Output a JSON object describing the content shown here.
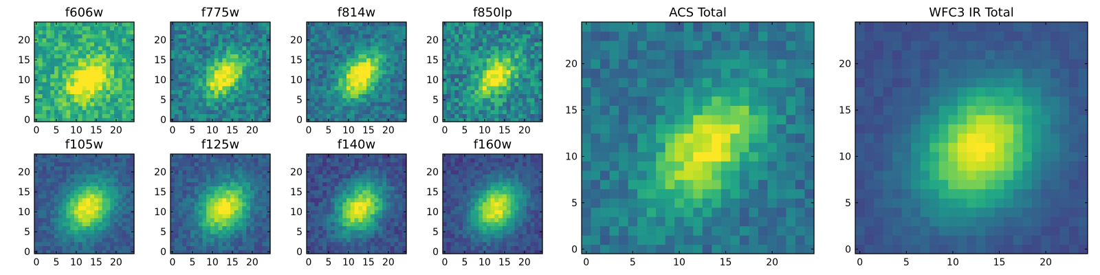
{
  "chart_data": [
    {
      "type": "heatmap",
      "title": "f606w",
      "xticks": [
        "0",
        "5",
        "10",
        "15",
        "20"
      ],
      "yticks": [
        "0",
        "5",
        "10",
        "15",
        "20"
      ],
      "xlim": [
        -0.5,
        24.5
      ],
      "ylim": [
        -0.5,
        24.5
      ],
      "colormap": "viridis",
      "center": [
        13,
        10
      ],
      "sigma": [
        4.2,
        3.0
      ],
      "angle": 45,
      "peak": 0.55,
      "base": 0.62,
      "noise": 0.32,
      "seed": 11
    },
    {
      "type": "heatmap",
      "title": "f775w",
      "xticks": [
        "0",
        "5",
        "10",
        "15",
        "20"
      ],
      "yticks": [
        "0",
        "5",
        "10",
        "15",
        "20"
      ],
      "xlim": [
        -0.5,
        24.5
      ],
      "ylim": [
        -0.5,
        24.5
      ],
      "colormap": "viridis",
      "center": [
        13,
        11
      ],
      "sigma": [
        4.2,
        2.6
      ],
      "angle": 50,
      "peak": 0.65,
      "base": 0.42,
      "noise": 0.3,
      "seed": 23
    },
    {
      "type": "heatmap",
      "title": "f814w",
      "xticks": [
        "0",
        "5",
        "10",
        "15",
        "20"
      ],
      "yticks": [
        "0",
        "5",
        "10",
        "15",
        "20"
      ],
      "xlim": [
        -0.5,
        24.5
      ],
      "ylim": [
        -0.5,
        24.5
      ],
      "colormap": "viridis",
      "center": [
        13,
        11
      ],
      "sigma": [
        4.5,
        2.8
      ],
      "angle": 50,
      "peak": 0.72,
      "base": 0.38,
      "noise": 0.26,
      "seed": 37
    },
    {
      "type": "heatmap",
      "title": "f850lp",
      "xticks": [
        "0",
        "5",
        "10",
        "15",
        "20"
      ],
      "yticks": [
        "0",
        "5",
        "10",
        "15",
        "20"
      ],
      "xlim": [
        -0.5,
        24.5
      ],
      "ylim": [
        -0.5,
        24.5
      ],
      "colormap": "viridis",
      "center": [
        13,
        11
      ],
      "sigma": [
        4.2,
        2.6
      ],
      "angle": 50,
      "peak": 0.62,
      "base": 0.45,
      "noise": 0.36,
      "seed": 41
    },
    {
      "type": "heatmap",
      "title": "f105w",
      "xticks": [
        "0",
        "5",
        "10",
        "15",
        "20"
      ],
      "yticks": [
        "0",
        "5",
        "10",
        "15",
        "20"
      ],
      "xlim": [
        -0.5,
        24.5
      ],
      "ylim": [
        -0.5,
        24.5
      ],
      "colormap": "viridis",
      "center": [
        13,
        11
      ],
      "sigma": [
        5.0,
        3.8
      ],
      "angle": 50,
      "peak": 0.72,
      "base": 0.28,
      "noise": 0.16,
      "seed": 53
    },
    {
      "type": "heatmap",
      "title": "f125w",
      "xticks": [
        "0",
        "5",
        "10",
        "15",
        "20"
      ],
      "yticks": [
        "0",
        "5",
        "10",
        "15",
        "20"
      ],
      "xlim": [
        -0.5,
        24.5
      ],
      "ylim": [
        -0.5,
        24.5
      ],
      "colormap": "viridis",
      "center": [
        13,
        11
      ],
      "sigma": [
        5.0,
        3.8
      ],
      "angle": 50,
      "peak": 0.72,
      "base": 0.28,
      "noise": 0.18,
      "seed": 67
    },
    {
      "type": "heatmap",
      "title": "f140w",
      "xticks": [
        "0",
        "5",
        "10",
        "15",
        "20"
      ],
      "yticks": [
        "0",
        "5",
        "10",
        "15",
        "20"
      ],
      "xlim": [
        -0.5,
        24.5
      ],
      "ylim": [
        -0.5,
        24.5
      ],
      "colormap": "viridis",
      "center": [
        13,
        11
      ],
      "sigma": [
        4.8,
        3.5
      ],
      "angle": 50,
      "peak": 0.74,
      "base": 0.24,
      "noise": 0.2,
      "seed": 71
    },
    {
      "type": "heatmap",
      "title": "f160w",
      "xticks": [
        "0",
        "5",
        "10",
        "15",
        "20"
      ],
      "yticks": [
        "0",
        "5",
        "10",
        "15",
        "20"
      ],
      "xlim": [
        -0.5,
        24.5
      ],
      "ylim": [
        -0.5,
        24.5
      ],
      "colormap": "viridis",
      "center": [
        13,
        11
      ],
      "sigma": [
        5.0,
        3.8
      ],
      "angle": 50,
      "peak": 0.76,
      "base": 0.22,
      "noise": 0.16,
      "seed": 83
    },
    {
      "type": "heatmap",
      "title": "ACS Total",
      "xticks": [
        "0",
        "5",
        "10",
        "15",
        "20"
      ],
      "yticks": [
        "0",
        "5",
        "10",
        "15",
        "20"
      ],
      "xlim": [
        -0.5,
        24.5
      ],
      "ylim": [
        -0.5,
        24.5
      ],
      "colormap": "viridis",
      "center": [
        13,
        11
      ],
      "sigma": [
        5.2,
        3.0
      ],
      "angle": 50,
      "peak": 0.62,
      "base": 0.38,
      "noise": 0.22,
      "seed": 97
    },
    {
      "type": "heatmap",
      "title": "WFC3 IR Total",
      "xticks": [
        "0",
        "5",
        "10",
        "15",
        "20"
      ],
      "yticks": [
        "0",
        "5",
        "10",
        "15",
        "20"
      ],
      "xlim": [
        -0.5,
        24.5
      ],
      "ylim": [
        -0.5,
        24.5
      ],
      "colormap": "viridis",
      "center": [
        13,
        11
      ],
      "sigma": [
        5.2,
        4.0
      ],
      "angle": 50,
      "peak": 0.74,
      "base": 0.25,
      "noise": 0.09,
      "seed": 101
    }
  ]
}
